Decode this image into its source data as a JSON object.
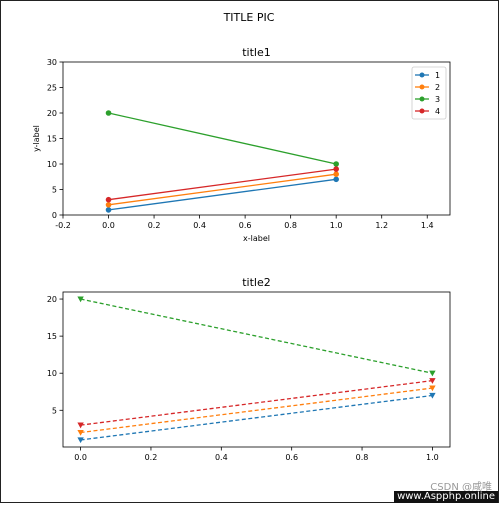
{
  "figure": {
    "suptitle": "TITLE PIC",
    "watermark": "CSDN @咸唯",
    "source": "www.Aspphp.online"
  },
  "chart_data": [
    {
      "type": "line",
      "title": "title1",
      "xlabel": "x-label",
      "ylabel": "y-label",
      "xlim": [
        -0.2,
        1.5
      ],
      "ylim": [
        0,
        30
      ],
      "xticks": [
        "-0.2",
        "0.0",
        "0.2",
        "0.4",
        "0.6",
        "0.8",
        "1.0",
        "1.2",
        "1.4"
      ],
      "yticks": [
        "0",
        "5",
        "10",
        "15",
        "20",
        "25",
        "30"
      ],
      "grid": false,
      "legend": "top-right",
      "marker": "circle",
      "linestyle": "solid",
      "x": [
        0,
        1
      ],
      "series": [
        {
          "name": "1",
          "color": "#1f77b4",
          "values": [
            1,
            7
          ]
        },
        {
          "name": "2",
          "color": "#ff7f0e",
          "values": [
            2,
            8
          ]
        },
        {
          "name": "3",
          "color": "#2ca02c",
          "values": [
            20,
            10
          ]
        },
        {
          "name": "4",
          "color": "#d62728",
          "values": [
            3,
            9
          ]
        }
      ]
    },
    {
      "type": "line",
      "title": "title2",
      "xlabel": "",
      "ylabel": "",
      "xlim": [
        -0.05,
        1.05
      ],
      "ylim": [
        0.05,
        20.95
      ],
      "xticks": [
        "0.0",
        "0.2",
        "0.4",
        "0.6",
        "0.8",
        "1.0"
      ],
      "yticks": [
        "5",
        "10",
        "15",
        "20"
      ],
      "grid": false,
      "marker": "triangle-down",
      "linestyle": "dashed",
      "x": [
        0,
        1
      ],
      "series": [
        {
          "color": "#1f77b4",
          "values": [
            1,
            7
          ]
        },
        {
          "color": "#ff7f0e",
          "values": [
            2,
            8
          ]
        },
        {
          "color": "#2ca02c",
          "values": [
            20,
            10
          ]
        },
        {
          "color": "#d62728",
          "values": [
            3,
            9
          ]
        }
      ]
    }
  ]
}
